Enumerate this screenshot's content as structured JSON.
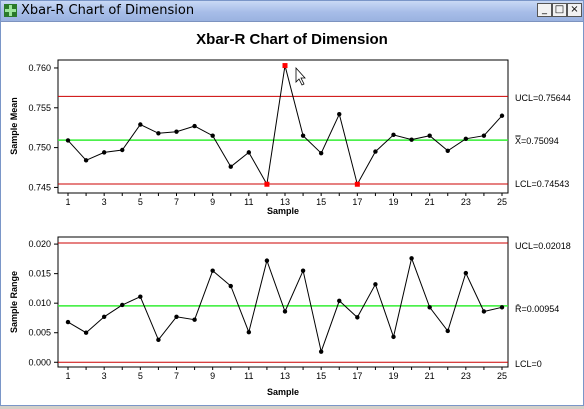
{
  "window": {
    "title": "Xbar-R Chart of Dimension",
    "buttons": {
      "minimize": "_",
      "maximize": "□",
      "close": "×"
    }
  },
  "colors": {
    "titlebar": "#a7bde8",
    "control_limit": "#cc0000",
    "center_line": "#33ee33",
    "data": "#000000",
    "out_of_control": "#ff0000",
    "background": "#ffffff"
  },
  "chart_data": [
    {
      "type": "line",
      "title": "Xbar-R Chart of Dimension",
      "xlabel": "Sample",
      "ylabel": "Sample Mean",
      "x": [
        1,
        2,
        3,
        4,
        5,
        6,
        7,
        8,
        9,
        10,
        11,
        12,
        13,
        14,
        15,
        16,
        17,
        18,
        19,
        20,
        21,
        22,
        23,
        24,
        25
      ],
      "values": [
        0.7509,
        0.7484,
        0.7494,
        0.7497,
        0.7529,
        0.7518,
        0.752,
        0.7527,
        0.7515,
        0.7476,
        0.7494,
        0.7454,
        0.7603,
        0.7515,
        0.7493,
        0.7542,
        0.7454,
        0.7495,
        0.7516,
        0.751,
        0.7515,
        0.7496,
        0.7511,
        0.7515,
        0.754
      ],
      "out_of_control": [
        12,
        13,
        17
      ],
      "ylim": [
        0.7443,
        0.761
      ],
      "yticks": [
        "0.745",
        "0.750",
        "0.755",
        "0.760"
      ],
      "ytick_values": [
        0.745,
        0.75,
        0.755,
        0.76
      ],
      "xticks": [
        "1",
        "3",
        "5",
        "7",
        "9",
        "11",
        "13",
        "15",
        "17",
        "19",
        "21",
        "23",
        "25"
      ],
      "ucl": 0.75644,
      "center": 0.75094,
      "lcl": 0.74543,
      "ucl_label": "UCL=0.75644",
      "center_label_symbol": "X̿",
      "center_label": "=0.75094",
      "lcl_label": "LCL=0.74543"
    },
    {
      "type": "line",
      "xlabel": "Sample",
      "ylabel": "Sample Range",
      "x": [
        1,
        2,
        3,
        4,
        5,
        6,
        7,
        8,
        9,
        10,
        11,
        12,
        13,
        14,
        15,
        16,
        17,
        18,
        19,
        20,
        21,
        22,
        23,
        24,
        25
      ],
      "values": [
        0.0068,
        0.005,
        0.0077,
        0.0097,
        0.0111,
        0.0038,
        0.0077,
        0.0072,
        0.0155,
        0.0129,
        0.0051,
        0.0172,
        0.0086,
        0.0155,
        0.0018,
        0.0104,
        0.0076,
        0.0132,
        0.0043,
        0.0176,
        0.0093,
        0.0053,
        0.0151,
        0.0086,
        0.0093
      ],
      "ylim": [
        -0.0008,
        0.0212
      ],
      "yticks": [
        "0.000",
        "0.005",
        "0.010",
        "0.015",
        "0.020"
      ],
      "ytick_values": [
        0,
        0.005,
        0.01,
        0.015,
        0.02
      ],
      "xticks": [
        "1",
        "3",
        "5",
        "7",
        "9",
        "11",
        "13",
        "15",
        "17",
        "19",
        "21",
        "23",
        "25"
      ],
      "ucl": 0.02018,
      "center": 0.00954,
      "lcl": 0,
      "ucl_label": "UCL=0.02018",
      "center_label_symbol": "R̄",
      "center_label": "=0.00954",
      "lcl_label": "LCL=0"
    }
  ]
}
